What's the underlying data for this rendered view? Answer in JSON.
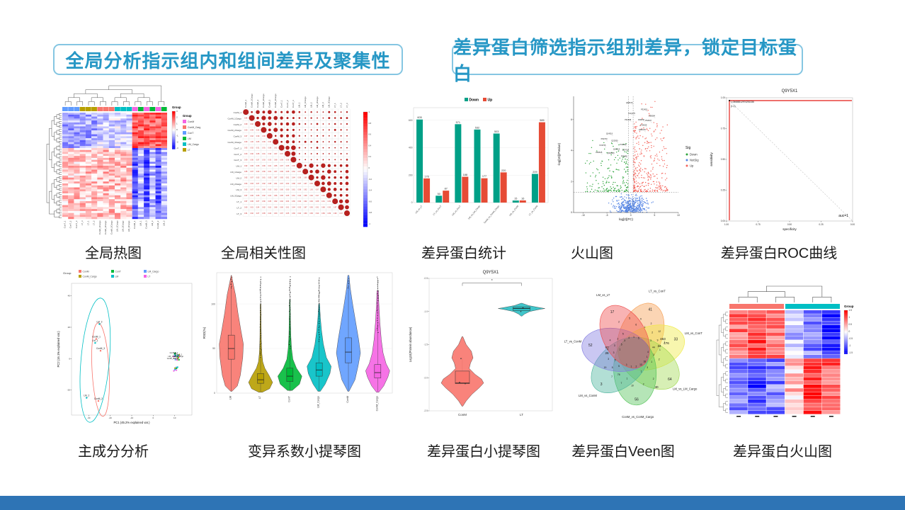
{
  "headers": [
    {
      "text": "全局分析指示组内和组间差异及聚集性"
    },
    {
      "text": "差异蛋白筛选指示组别差异，锁定目标蛋白"
    }
  ],
  "panels": [
    {
      "caption": "全局热图"
    },
    {
      "caption": "全局相关性图"
    },
    {
      "caption": "差异蛋白统计"
    },
    {
      "caption": "火山图"
    },
    {
      "caption": "差异蛋白ROC曲线"
    },
    {
      "caption": "主成分分析"
    },
    {
      "caption": "变异系数小提琴图"
    },
    {
      "caption": "差异蛋白小提琴图"
    },
    {
      "caption": "差异蛋白Veen图"
    },
    {
      "caption": "差异蛋白火山图"
    }
  ],
  "footer_color": "#2E74B5",
  "chart_data": [
    {
      "id": "global-heatmap",
      "type": "heatmap",
      "legend_title": "Group",
      "groups": [
        {
          "name": "ConM",
          "color": "#F564E3"
        },
        {
          "name": "ConM_Cargo",
          "color": "#F8766D"
        },
        {
          "name": "ConT",
          "color": "#619CFF"
        },
        {
          "name": "LM",
          "color": "#00BA38"
        },
        {
          "name": "LM_Cargo",
          "color": "#00BFC4"
        },
        {
          "name": "LT",
          "color": "#B79F00"
        }
      ],
      "scale_ticks": [
        3,
        2,
        1,
        0,
        -1,
        -2,
        -3
      ],
      "col_labels": [
        "ConT_1",
        "ConT_2",
        "ConT_3",
        "LT_3",
        "LT_1",
        "LT_2",
        "ConM_1Cargo",
        "ConM_3Cargo",
        "ConM_2Cargo",
        "LM_1Cargo",
        "LM_2Cargo",
        "LM_3Cargo",
        "ConM_1",
        "LM_1",
        "ConM_3",
        "LM_3",
        "ConM_2",
        "LM_2"
      ],
      "col_groups": [
        "ConT",
        "ConT",
        "ConT",
        "LT",
        "LT",
        "LT",
        "ConM_Cargo",
        "ConM_Cargo",
        "ConM_Cargo",
        "LM_Cargo",
        "LM_Cargo",
        "LM_Cargo",
        "ConM",
        "LM",
        "ConM",
        "LM",
        "ConM",
        "LM"
      ],
      "rows": 54,
      "pattern": {
        "split": 0.33,
        "noise": 0.85,
        "blocks": [
          {
            "cols": [
              0,
              5
            ],
            "top": -1.1,
            "bot": 0.7
          },
          {
            "cols": [
              6,
              11
            ],
            "top": -0.5,
            "bot": 0.8
          },
          {
            "cols": [
              12,
              17
            ],
            "top": 1.9,
            "botEven": -2.0,
            "botOdd": -0.8
          }
        ]
      }
    },
    {
      "id": "correlation",
      "type": "corr-matrix",
      "labels": [
        "ConM_1",
        "ConM_1Cargo",
        "ConM_2",
        "ConM_2Cargo",
        "ConM_3",
        "ConM_3Cargo",
        "ConT_1",
        "ConT_2",
        "ConT_3",
        "LM_1",
        "LM_1Cargo",
        "LM_2",
        "LM_2Cargo",
        "LM_3",
        "LM_3Cargo",
        "LT_1",
        "LT_2",
        "LT_3"
      ],
      "colorbar_ticks": [
        1,
        0.8,
        0.6,
        0.4,
        0.2,
        0,
        -0.2,
        -0.4,
        -0.6,
        -0.8,
        -1
      ],
      "within_group_range": [
        0.96,
        1.0
      ],
      "between_group_range": [
        0.8,
        0.95
      ],
      "shown_examples": [
        0.97,
        0.98,
        0.99,
        0.96,
        0.95,
        0.94,
        0.93,
        0.91,
        1.0
      ]
    },
    {
      "id": "dep-stats",
      "type": "bar",
      "legend": [
        {
          "name": "Down",
          "color": "#00A087"
        },
        {
          "name": "Up",
          "color": "#E64B35"
        }
      ],
      "categories": [
        "LM_vs_LT",
        "LT_vs_ConT",
        "LM_vs_ConT",
        "LM_vs_LM_Cargo",
        "ConM_vs_ConM_Cargo",
        "LM_vs_ConM",
        "LT_vs_ConM"
      ],
      "series": [
        {
          "name": "Down",
          "values": [
            605,
            50,
            571,
            532,
            503,
            15,
            209
          ]
        },
        {
          "name": "Up",
          "values": [
            176,
            87,
            188,
            177,
            220,
            16,
            585
          ]
        }
      ],
      "ylim": [
        0,
        650
      ],
      "yticks": [
        0,
        200,
        400,
        600
      ]
    },
    {
      "id": "volcano",
      "type": "scatter",
      "xlabel": "log[2](FC)",
      "ylabel": "-log[10](PValue)",
      "xticks": [
        -10,
        -5,
        0,
        5,
        10
      ],
      "yticks": [
        0,
        2,
        4,
        6
      ],
      "legend_title": "Sig",
      "legend": [
        {
          "name": "Down",
          "color": "#2EA43C"
        },
        {
          "name": "NotSig",
          "color": "#5585E5"
        },
        {
          "name": "Up",
          "color": "#F4655C"
        }
      ],
      "thresholds": {
        "x": [
          -0.5,
          0.5
        ],
        "y": 1.3
      },
      "gene_labels": [
        "Q8Z676",
        "P32452",
        "O95084",
        "P62947",
        "O4Q175",
        "P62268",
        "P48059",
        "P35529",
        "Q9BUF5",
        "Q14019",
        "P62760",
        "Q22050",
        "P23705",
        "P40040",
        "Q04413",
        "O60645",
        "Q9NZN5",
        "Q07024",
        "P35080"
      ],
      "counts": {
        "down": 190,
        "notsig": 430,
        "up": 330
      }
    },
    {
      "id": "roc",
      "type": "line",
      "title": "Q9Y5X1",
      "xlabel": "specificity",
      "ylabel": "sensitivity",
      "xticks": [
        "1.00",
        "0.75",
        "0.50",
        "0.25",
        "0.00"
      ],
      "yticks": [
        "0.00",
        "0.25",
        "0.50",
        "0.75",
        "1.00"
      ],
      "annotation_threshold": "1.05688312974251336",
      "annotation_point": "(1,1)",
      "auc_label": "auc=1",
      "line_color": "#E8413C"
    },
    {
      "id": "pca",
      "type": "scatter",
      "legend_title": "Group:",
      "groups": [
        {
          "name": "ConM",
          "color": "#F8766D"
        },
        {
          "name": "ConM_Cargo",
          "color": "#B79F00"
        },
        {
          "name": "ConT",
          "color": "#00BA38"
        },
        {
          "name": "LM",
          "color": "#00BFC4"
        },
        {
          "name": "LM_Cargo",
          "color": "#619CFF"
        },
        {
          "name": "LT",
          "color": "#F564E3"
        }
      ],
      "xlabel": "PC1 (45.2% explained var.)",
      "ylabel": "PC2 (16.1% explained var.)",
      "xticks": [
        -30,
        -20,
        -10,
        0,
        10
      ],
      "yticks": [
        -20,
        0,
        20,
        40
      ],
      "labeled_points": [
        {
          "label": "LM_3",
          "x": -25,
          "y": 22,
          "color": "#00BFC4"
        },
        {
          "label": "ConM_1",
          "x": -26.5,
          "y": 12.5,
          "color": "#F8766D"
        },
        {
          "label": "LM_1",
          "x": -27,
          "y": 10,
          "color": "#00BFC4"
        },
        {
          "label": "ConM_3",
          "x": -24.5,
          "y": 5,
          "color": "#F8766D"
        },
        {
          "label": "LM_2",
          "x": -31,
          "y": -25,
          "color": "#00BFC4"
        },
        {
          "label": "ConM_2",
          "x": -25.5,
          "y": -27,
          "color": "#F8766D"
        }
      ],
      "cluster_labels": [
        "ConT_1",
        "LT_2",
        "LM_2Cargo",
        "ConM_3Cargo",
        "LT_1",
        "ConT_2",
        "LM_1Cargo",
        "LT_3"
      ]
    },
    {
      "id": "rsd-violin",
      "type": "violin",
      "ylabel": "RSD(%)",
      "yticks": [
        0,
        50,
        100
      ],
      "ymax": 135,
      "categories": [
        "LM",
        "LT",
        "ConT",
        "LM_Cargo",
        "ConM",
        "ConM_Cargo"
      ],
      "colors": [
        "#F8766D",
        "#B79F00",
        "#00BA38",
        "#00BFC4",
        "#619CFF",
        "#F564E3"
      ],
      "boxes": [
        [
          38,
          65,
          50
        ],
        [
          11,
          22,
          15
        ],
        [
          13,
          28,
          19
        ],
        [
          19,
          34,
          26
        ],
        [
          34,
          62,
          46
        ],
        [
          17,
          32,
          23
        ]
      ],
      "outlier_start": [
        118,
        40,
        50,
        58,
        118,
        68
      ]
    },
    {
      "id": "dep-violin",
      "type": "violin",
      "title": "Q9Y5X1",
      "ylabel": "Log10(Protein abundance)",
      "yticks": [
        -0.5,
        -1.0,
        -1.5,
        -2.0,
        -2.5
      ],
      "categories": [
        "ConM",
        "LT"
      ],
      "colors": [
        "#F8766D",
        "#2BBFC4"
      ],
      "significance": "*",
      "conm": {
        "median": -2.08,
        "box": [
          -1.9,
          -2.09
        ],
        "range": [
          -1.38,
          -2.43
        ]
      },
      "lt": {
        "median": -0.955,
        "box": [
          -0.93,
          -0.985
        ],
        "range": [
          -0.875,
          -1.07
        ]
      }
    },
    {
      "id": "venn",
      "type": "venn7",
      "sets": [
        {
          "name": "LT_vs_ConT",
          "color": "#F59B4C",
          "unique": 41
        },
        {
          "name": "LM_vs_ConT",
          "color": "#EFE93F",
          "unique": 33
        },
        {
          "name": "LM_vs_LM_Cargo",
          "color": "#9FD84F",
          "unique": 64
        },
        {
          "name": "ConM_vs_ConM_Cargo",
          "color": "#4FC254",
          "unique": 56
        },
        {
          "name": "LM_vs_ConM",
          "color": "#48B39A",
          "unique": 3
        },
        {
          "name": "LT_vs_ConM",
          "color": "#8079E0",
          "unique": 52
        },
        {
          "name": "LM_vs_LT",
          "color": "#EE4B4B",
          "unique": 17
        }
      ],
      "big_intersections": [
        463,
        476,
        97,
        40,
        34,
        26
      ],
      "intersections": [
        4,
        5,
        6,
        2,
        1,
        3,
        1,
        2,
        1,
        5,
        1,
        2,
        5,
        44,
        76,
        5,
        18,
        3,
        2,
        10,
        3,
        3,
        5,
        9,
        13,
        3,
        9,
        7,
        4,
        1,
        3,
        2,
        2,
        2,
        1,
        7,
        1,
        3,
        4,
        12,
        1,
        5,
        2,
        19,
        5,
        1,
        4,
        1,
        1
      ]
    },
    {
      "id": "dep-heatmap",
      "type": "heatmap",
      "legend_title": "Group",
      "scale_ticks": [
        1.5,
        1,
        0.5,
        0,
        -0.5,
        -1,
        -1.5
      ],
      "cols": 6,
      "rows": 28,
      "col_band": [
        "#F8766D",
        "#F8766D",
        "#F8766D",
        "#00BFC4",
        "#00BFC4",
        "#00BFC4"
      ],
      "pattern": {
        "split": 0.46,
        "noise": 0.5,
        "colTop": [
          1.1,
          1.3,
          1.0,
          -0.4,
          -0.9,
          -1.6
        ],
        "colBot": [
          -1.0,
          -1.3,
          -0.9,
          0.4,
          1.3,
          1.1
        ]
      }
    }
  ]
}
